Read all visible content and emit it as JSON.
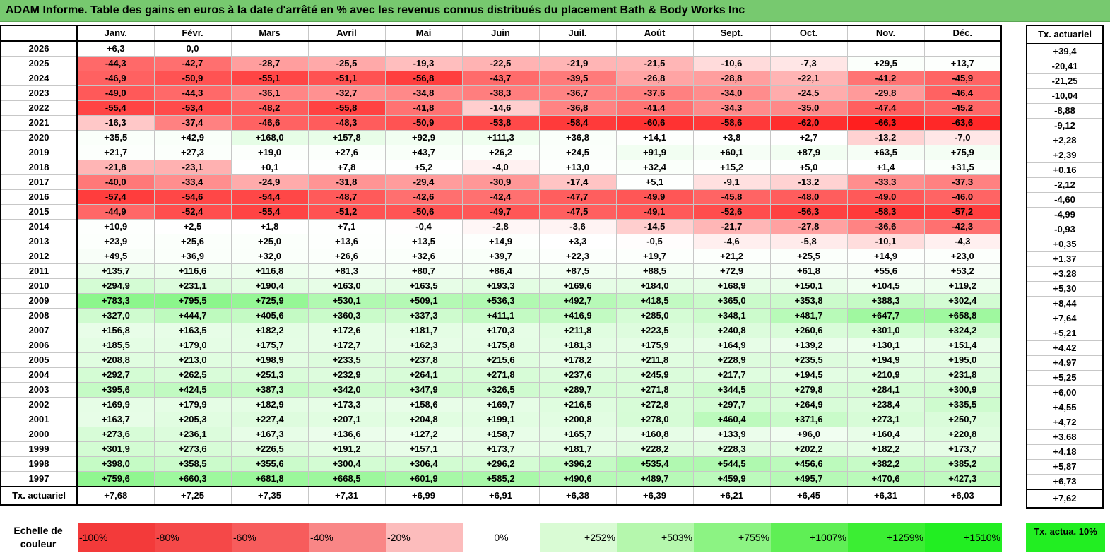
{
  "title": "ADAM Informe. Table des gains en euros à la date d'arrêté en % avec les revenus connus distribués du placement Bath & Body Works Inc",
  "chart_data": {
    "type": "table",
    "months": [
      "Janv.",
      "Févr.",
      "Mars",
      "Avril",
      "Mai",
      "Juin",
      "Juil.",
      "Août",
      "Sept.",
      "Oct.",
      "Nov.",
      "Déc."
    ],
    "annual_column_label": "Tx. actuariel",
    "rows": [
      {
        "year": "2026",
        "values": [
          "+6,3",
          "0,0",
          "",
          "",
          "",
          "",
          "",
          "",
          "",
          "",
          "",
          ""
        ],
        "annual": "+39,4"
      },
      {
        "year": "2025",
        "values": [
          "-44,3",
          "-42,7",
          "-28,7",
          "-25,5",
          "-19,3",
          "-22,5",
          "-21,9",
          "-21,5",
          "-10,6",
          "-7,3",
          "+29,5",
          "+13,7"
        ],
        "annual": "-20,41"
      },
      {
        "year": "2024",
        "values": [
          "-46,9",
          "-50,9",
          "-55,1",
          "-51,1",
          "-56,8",
          "-43,7",
          "-39,5",
          "-26,8",
          "-28,8",
          "-22,1",
          "-41,2",
          "-45,9"
        ],
        "annual": "-21,25"
      },
      {
        "year": "2023",
        "values": [
          "-49,0",
          "-44,3",
          "-36,1",
          "-32,7",
          "-34,8",
          "-38,3",
          "-36,7",
          "-37,6",
          "-34,0",
          "-24,5",
          "-29,8",
          "-46,4"
        ],
        "annual": "-10,04"
      },
      {
        "year": "2022",
        "values": [
          "-55,4",
          "-53,4",
          "-48,2",
          "-55,8",
          "-41,8",
          "-14,6",
          "-36,8",
          "-41,4",
          "-34,3",
          "-35,0",
          "-47,4",
          "-45,2"
        ],
        "annual": "-8,88"
      },
      {
        "year": "2021",
        "values": [
          "-16,3",
          "-37,4",
          "-46,6",
          "-48,3",
          "-50,9",
          "-53,8",
          "-58,4",
          "-60,6",
          "-58,6",
          "-62,0",
          "-66,3",
          "-63,6"
        ],
        "annual": "-9,12"
      },
      {
        "year": "2020",
        "values": [
          "+35,5",
          "+42,9",
          "+168,0",
          "+157,8",
          "+92,9",
          "+111,3",
          "+36,8",
          "+14,1",
          "+3,8",
          "+2,7",
          "-13,2",
          "-7,0"
        ],
        "annual": "+2,28"
      },
      {
        "year": "2019",
        "values": [
          "+21,7",
          "+27,3",
          "+19,0",
          "+27,6",
          "+43,7",
          "+26,2",
          "+24,5",
          "+91,9",
          "+60,1",
          "+87,9",
          "+63,5",
          "+75,9"
        ],
        "annual": "+2,39"
      },
      {
        "year": "2018",
        "values": [
          "-21,8",
          "-23,1",
          "+0,1",
          "+7,8",
          "+5,2",
          "-4,0",
          "+13,0",
          "+32,4",
          "+15,2",
          "+5,0",
          "+1,4",
          "+31,5"
        ],
        "annual": "+0,16"
      },
      {
        "year": "2017",
        "values": [
          "-40,0",
          "-33,4",
          "-24,9",
          "-31,8",
          "-29,4",
          "-30,9",
          "-17,4",
          "+5,1",
          "-9,1",
          "-13,2",
          "-33,3",
          "-37,3"
        ],
        "annual": "-2,12"
      },
      {
        "year": "2016",
        "values": [
          "-57,4",
          "-54,6",
          "-54,4",
          "-48,7",
          "-42,6",
          "-42,4",
          "-47,7",
          "-49,9",
          "-45,8",
          "-48,0",
          "-49,0",
          "-46,0"
        ],
        "annual": "-4,60"
      },
      {
        "year": "2015",
        "values": [
          "-44,9",
          "-52,4",
          "-55,4",
          "-51,2",
          "-50,6",
          "-49,7",
          "-47,5",
          "-49,1",
          "-52,6",
          "-56,3",
          "-58,3",
          "-57,2"
        ],
        "annual": "-4,99"
      },
      {
        "year": "2014",
        "values": [
          "+10,9",
          "+2,5",
          "+1,8",
          "+7,1",
          "-0,4",
          "-2,8",
          "-3,6",
          "-14,5",
          "-21,7",
          "-27,8",
          "-36,6",
          "-42,3"
        ],
        "annual": "-0,93"
      },
      {
        "year": "2013",
        "values": [
          "+23,9",
          "+25,6",
          "+25,0",
          "+13,6",
          "+13,5",
          "+14,9",
          "+3,3",
          "-0,5",
          "-4,6",
          "-5,8",
          "-10,1",
          "-4,3"
        ],
        "annual": "+0,35"
      },
      {
        "year": "2012",
        "values": [
          "+49,5",
          "+36,9",
          "+32,0",
          "+26,6",
          "+32,6",
          "+39,7",
          "+22,3",
          "+19,7",
          "+21,2",
          "+25,5",
          "+14,9",
          "+23,0"
        ],
        "annual": "+1,37"
      },
      {
        "year": "2011",
        "values": [
          "+135,7",
          "+116,6",
          "+116,8",
          "+81,3",
          "+80,7",
          "+86,4",
          "+87,5",
          "+88,5",
          "+72,9",
          "+61,8",
          "+55,6",
          "+53,2"
        ],
        "annual": "+3,28"
      },
      {
        "year": "2010",
        "values": [
          "+294,9",
          "+231,1",
          "+190,4",
          "+163,0",
          "+163,5",
          "+193,3",
          "+169,6",
          "+184,0",
          "+168,9",
          "+150,1",
          "+104,5",
          "+119,2"
        ],
        "annual": "+5,30"
      },
      {
        "year": "2009",
        "values": [
          "+783,3",
          "+795,5",
          "+725,9",
          "+530,1",
          "+509,1",
          "+536,3",
          "+492,7",
          "+418,5",
          "+365,0",
          "+353,8",
          "+388,3",
          "+302,4"
        ],
        "annual": "+8,44"
      },
      {
        "year": "2008",
        "values": [
          "+327,0",
          "+444,7",
          "+405,6",
          "+360,3",
          "+337,3",
          "+411,1",
          "+416,9",
          "+285,0",
          "+348,1",
          "+481,7",
          "+647,7",
          "+658,8"
        ],
        "annual": "+7,64"
      },
      {
        "year": "2007",
        "values": [
          "+156,8",
          "+163,5",
          "+182,2",
          "+172,6",
          "+181,7",
          "+170,3",
          "+211,8",
          "+223,5",
          "+240,8",
          "+260,6",
          "+301,0",
          "+324,2"
        ],
        "annual": "+5,21"
      },
      {
        "year": "2006",
        "values": [
          "+185,5",
          "+179,0",
          "+175,7",
          "+172,7",
          "+162,3",
          "+175,8",
          "+181,3",
          "+175,9",
          "+164,9",
          "+139,2",
          "+130,1",
          "+151,4"
        ],
        "annual": "+4,42"
      },
      {
        "year": "2005",
        "values": [
          "+208,8",
          "+213,0",
          "+198,9",
          "+233,5",
          "+237,8",
          "+215,6",
          "+178,2",
          "+211,8",
          "+228,9",
          "+235,5",
          "+194,9",
          "+195,0"
        ],
        "annual": "+4,97"
      },
      {
        "year": "2004",
        "values": [
          "+292,7",
          "+262,5",
          "+251,3",
          "+232,9",
          "+264,1",
          "+271,8",
          "+237,6",
          "+245,9",
          "+217,7",
          "+194,5",
          "+210,9",
          "+231,8"
        ],
        "annual": "+5,25"
      },
      {
        "year": "2003",
        "values": [
          "+395,6",
          "+424,5",
          "+387,3",
          "+342,0",
          "+347,9",
          "+326,5",
          "+289,7",
          "+271,8",
          "+344,5",
          "+279,8",
          "+284,1",
          "+300,9"
        ],
        "annual": "+6,00"
      },
      {
        "year": "2002",
        "values": [
          "+169,9",
          "+179,9",
          "+182,9",
          "+173,3",
          "+158,6",
          "+169,7",
          "+216,5",
          "+272,8",
          "+297,7",
          "+264,9",
          "+238,4",
          "+335,5"
        ],
        "annual": "+4,55"
      },
      {
        "year": "2001",
        "values": [
          "+163,7",
          "+205,3",
          "+227,4",
          "+207,1",
          "+204,8",
          "+199,1",
          "+200,8",
          "+278,0",
          "+460,4",
          "+371,6",
          "+273,1",
          "+250,7"
        ],
        "annual": "+4,72"
      },
      {
        "year": "2000",
        "values": [
          "+273,6",
          "+236,1",
          "+167,3",
          "+136,6",
          "+127,2",
          "+158,7",
          "+165,7",
          "+160,8",
          "+133,9",
          "+96,0",
          "+160,4",
          "+220,8"
        ],
        "annual": "+3,68"
      },
      {
        "year": "1999",
        "values": [
          "+301,9",
          "+273,6",
          "+226,5",
          "+191,2",
          "+157,1",
          "+173,7",
          "+181,7",
          "+228,2",
          "+228,3",
          "+202,2",
          "+182,2",
          "+173,7"
        ],
        "annual": "+4,18"
      },
      {
        "year": "1998",
        "values": [
          "+398,0",
          "+358,5",
          "+355,6",
          "+300,4",
          "+306,4",
          "+296,2",
          "+396,2",
          "+535,4",
          "+544,5",
          "+456,6",
          "+382,2",
          "+385,2"
        ],
        "annual": "+5,87"
      },
      {
        "year": "1997",
        "values": [
          "+759,6",
          "+660,3",
          "+681,8",
          "+668,5",
          "+601,9",
          "+585,2",
          "+490,6",
          "+489,7",
          "+459,9",
          "+495,7",
          "+470,6",
          "+427,3"
        ],
        "annual": "+6,73"
      }
    ],
    "footer": {
      "label": "Tx. actuariel",
      "values": [
        "+7,68",
        "+7,25",
        "+7,35",
        "+7,31",
        "+6,99",
        "+6,91",
        "+6,38",
        "+6,39",
        "+6,21",
        "+6,45",
        "+6,31",
        "+6,03"
      ],
      "annual": "+7,62"
    },
    "color_scale": {
      "label": "Echelle de couleur",
      "negative_color": "#ff1f1f",
      "positive_color": "#22ee22",
      "steps": [
        {
          "label": "-100%",
          "pct": -100,
          "color": "#f33a3a"
        },
        {
          "label": "-80%",
          "pct": -80,
          "color": "#f54848"
        },
        {
          "label": "-60%",
          "pct": -60,
          "color": "#f75c5c"
        },
        {
          "label": "-40%",
          "pct": -40,
          "color": "#f98686"
        },
        {
          "label": "-20%",
          "pct": -20,
          "color": "#fcbcbc"
        },
        {
          "label": "0%",
          "pct": 0,
          "color": "#ffffff"
        },
        {
          "label": "+252%",
          "pct": 252,
          "color": "#d9fbd4"
        },
        {
          "label": "+503%",
          "pct": 503,
          "color": "#b5f7ad"
        },
        {
          "label": "+755%",
          "pct": 755,
          "color": "#8cf383"
        },
        {
          "label": "+1007%",
          "pct": 1007,
          "color": "#5fef55"
        },
        {
          "label": "+1259%",
          "pct": 1259,
          "color": "#3bee33"
        },
        {
          "label": "+1510%",
          "pct": 1510,
          "color": "#22ee22"
        }
      ],
      "actuarial_label": "Tx. actua. 10%"
    }
  }
}
